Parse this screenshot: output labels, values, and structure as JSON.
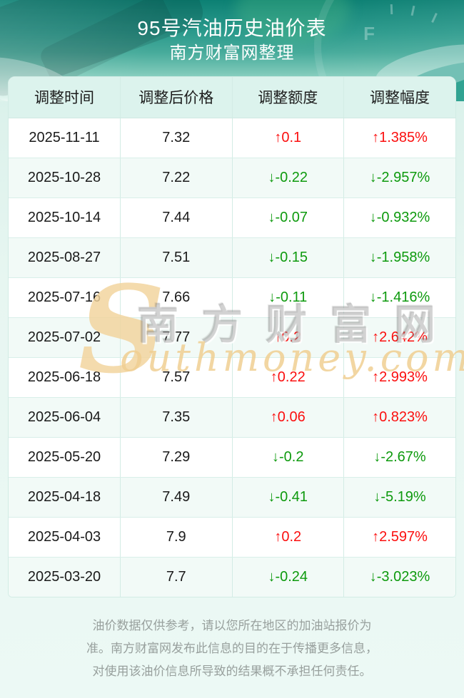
{
  "header": {
    "title": "95号汽油历史油价表",
    "subtitle": "南方财富网整理"
  },
  "table": {
    "headers": [
      "调整时间",
      "调整后价格",
      "调整额度",
      "调整幅度"
    ],
    "rows": [
      {
        "date": "2025-11-11",
        "price": "7.32",
        "change": "↑0.1",
        "pct": "↑1.385%",
        "dir": "up"
      },
      {
        "date": "2025-10-28",
        "price": "7.22",
        "change": "↓-0.22",
        "pct": "↓-2.957%",
        "dir": "down"
      },
      {
        "date": "2025-10-14",
        "price": "7.44",
        "change": "↓-0.07",
        "pct": "↓-0.932%",
        "dir": "down"
      },
      {
        "date": "2025-08-27",
        "price": "7.51",
        "change": "↓-0.15",
        "pct": "↓-1.958%",
        "dir": "down"
      },
      {
        "date": "2025-07-16",
        "price": "7.66",
        "change": "↓-0.11",
        "pct": "↓-1.416%",
        "dir": "down"
      },
      {
        "date": "2025-07-02",
        "price": "7.77",
        "change": "↑0.2",
        "pct": "↑2.642%",
        "dir": "up"
      },
      {
        "date": "2025-06-18",
        "price": "7.57",
        "change": "↑0.22",
        "pct": "↑2.993%",
        "dir": "up"
      },
      {
        "date": "2025-06-04",
        "price": "7.35",
        "change": "↑0.06",
        "pct": "↑0.823%",
        "dir": "up"
      },
      {
        "date": "2025-05-20",
        "price": "7.29",
        "change": "↓-0.2",
        "pct": "↓-2.67%",
        "dir": "down"
      },
      {
        "date": "2025-04-18",
        "price": "7.49",
        "change": "↓-0.41",
        "pct": "↓-5.19%",
        "dir": "down"
      },
      {
        "date": "2025-04-03",
        "price": "7.9",
        "change": "↑0.2",
        "pct": "↑2.597%",
        "dir": "up"
      },
      {
        "date": "2025-03-20",
        "price": "7.7",
        "change": "↓-0.24",
        "pct": "↓-3.023%",
        "dir": "down"
      }
    ]
  },
  "watermark": {
    "s": "S",
    "cjk": "南方财富网",
    "latin": "outhmoney.com"
  },
  "footer": {
    "lines": [
      "油价数据仅供参考，请以您所在地区的加油站报价为",
      "准。南方财富网发布此信息的目的在于传播更多信息，",
      "对使用该油价信息所导致的结果概不承担任何责任。"
    ]
  },
  "colors": {
    "up_red": "#fb0f0f",
    "down_green": "#0e9a0e",
    "header_teal_dark": "#0c8073",
    "header_teal_light": "#a8dfd2",
    "table_header_bg": "#dcf3ed",
    "row_alt_bg": "#f2faf7",
    "border": "#d3ece5",
    "watermark_tan": "#f2d49c"
  },
  "icons": {
    "up_arrow": "↑",
    "down_arrow": "↓"
  }
}
